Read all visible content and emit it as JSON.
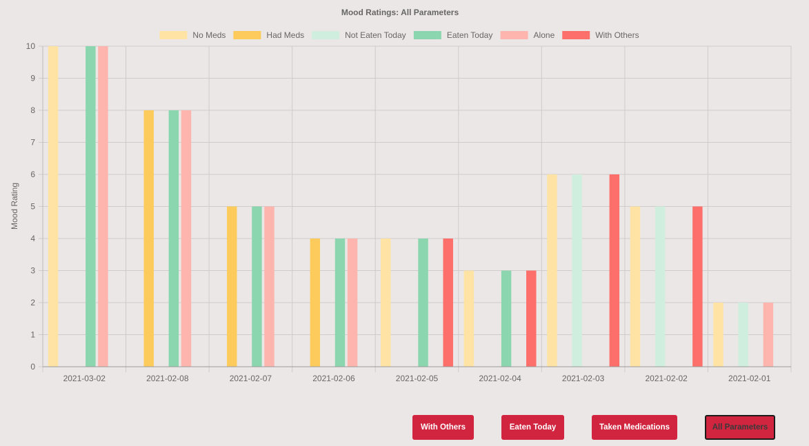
{
  "chart_data": {
    "type": "bar",
    "title": "Mood Ratings: All Parameters",
    "ylabel": "Mood Rating",
    "xlabel": "",
    "ylim": [
      0,
      10
    ],
    "y_ticks": [
      "0",
      "1",
      "2",
      "3",
      "4",
      "5",
      "6",
      "7",
      "8",
      "9",
      "10"
    ],
    "categories": [
      "2021-03-02",
      "2021-02-08",
      "2021-02-07",
      "2021-02-06",
      "2021-02-05",
      "2021-02-04",
      "2021-02-03",
      "2021-02-02",
      "2021-02-01"
    ],
    "legend_position": "top",
    "grid": true,
    "series": [
      {
        "name": "No Meds",
        "color": "#fee3a5",
        "values": [
          10,
          null,
          null,
          null,
          4,
          3,
          6,
          5,
          2
        ]
      },
      {
        "name": "Had Meds",
        "color": "#fdcb5c",
        "values": [
          null,
          8,
          5,
          4,
          null,
          null,
          null,
          null,
          null
        ]
      },
      {
        "name": "Not Eaten Today",
        "color": "#cfeedd",
        "values": [
          null,
          null,
          null,
          null,
          null,
          null,
          6,
          5,
          2
        ]
      },
      {
        "name": "Eaten Today",
        "color": "#8bd6ae",
        "values": [
          10,
          8,
          5,
          4,
          4,
          3,
          null,
          null,
          null
        ]
      },
      {
        "name": "Alone",
        "color": "#fdb5ae",
        "values": [
          10,
          8,
          5,
          4,
          null,
          null,
          null,
          null,
          2
        ]
      },
      {
        "name": "With Others",
        "color": "#fc6f6a",
        "values": [
          null,
          null,
          null,
          null,
          4,
          3,
          6,
          5,
          null
        ]
      }
    ]
  },
  "buttons": {
    "with_others": "With Others",
    "eaten_today": "Eaten Today",
    "taken_medications": "Taken Medications",
    "all_parameters": "All Parameters"
  },
  "colors": {
    "button_bg": "#d0243f",
    "grid": "#cfcbca",
    "text": "#666666"
  }
}
